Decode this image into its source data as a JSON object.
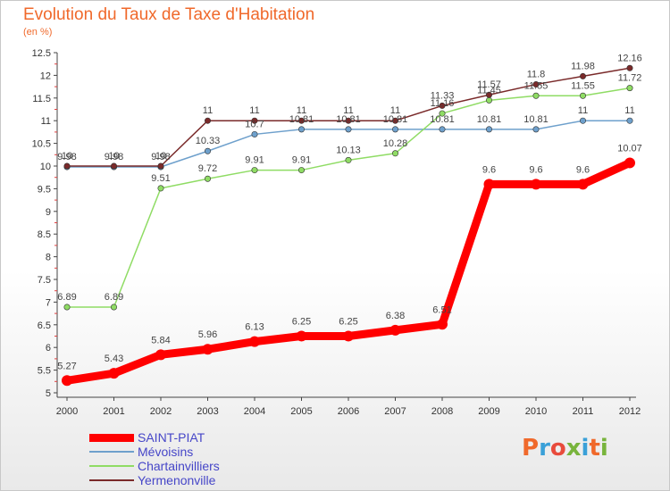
{
  "title": "Evolution du Taux de Taxe d'Habitation",
  "units": "(en %)",
  "logo": {
    "text": "Proxiti",
    "letter_colors": [
      "#f0692b",
      "#3aa0d8",
      "#e84b3c",
      "#78b43c",
      "#3aa0d8",
      "#f0692b",
      "#78b43c"
    ]
  },
  "chart_data": {
    "type": "line",
    "x": [
      2000,
      2001,
      2002,
      2003,
      2004,
      2005,
      2006,
      2007,
      2008,
      2009,
      2010,
      2011,
      2012
    ],
    "x_ticks": [
      "2000",
      "2001",
      "2002",
      "2003",
      "2004",
      "2005",
      "2006",
      "2007",
      "2008",
      "2009",
      "2010",
      "2011",
      "2012"
    ],
    "ylim": [
      5,
      12.5
    ],
    "y_ticks": [
      "5",
      "5.5",
      "6",
      "6.5",
      "7",
      "7.5",
      "8",
      "8.5",
      "9",
      "9.5",
      "10",
      "10.5",
      "11",
      "11.5",
      "12",
      "12.5"
    ],
    "grid": false,
    "legend_position": "bottom-left",
    "series": [
      {
        "name": "SAINT-PIAT",
        "color": "#ff0000",
        "values": [
          5.27,
          5.43,
          5.84,
          5.96,
          6.13,
          6.25,
          6.25,
          6.38,
          6.51,
          9.6,
          9.6,
          9.6,
          10.07
        ],
        "labels": [
          "5.27",
          "5.43",
          "5.84",
          "5.96",
          "6.13",
          "6.25",
          "6.25",
          "6.38",
          "6.51",
          "9.6",
          "9.6",
          "9.6",
          "10.07"
        ]
      },
      {
        "name": "Mévoisins",
        "color": "#6ea0cc",
        "values": [
          9.98,
          9.98,
          9.98,
          10.33,
          10.7,
          10.81,
          10.81,
          10.81,
          10.81,
          10.81,
          10.81,
          11,
          11
        ],
        "labels": [
          "9.98",
          "9.98",
          "9.98",
          "10.33",
          "10.7",
          "10.81",
          "10.81",
          "10.81",
          "10.81",
          "10.81",
          "10.81",
          "11",
          "11"
        ]
      },
      {
        "name": "Chartainvilliers",
        "color": "#8fdc64",
        "values": [
          6.89,
          6.89,
          9.51,
          9.72,
          9.91,
          9.91,
          10.13,
          10.28,
          11.16,
          11.45,
          11.55,
          11.55,
          11.72
        ],
        "labels": [
          "6.89",
          "6.89",
          "9.51",
          "9.72",
          "9.91",
          "9.91",
          "10.13",
          "10.28",
          "11.16",
          "11.45",
          "11.55",
          "11.55",
          "11.72"
        ]
      },
      {
        "name": "Yermenonville",
        "color": "#7a2a2a",
        "values": [
          10,
          10,
          10,
          11,
          11,
          11,
          11,
          11,
          11.33,
          11.57,
          11.8,
          11.98,
          12.16
        ],
        "labels": [
          "10",
          "10",
          "10",
          "11",
          "11",
          "11",
          "11",
          "11",
          "11.33",
          "11.57",
          "11.8",
          "11.98",
          "12.16"
        ]
      }
    ]
  }
}
